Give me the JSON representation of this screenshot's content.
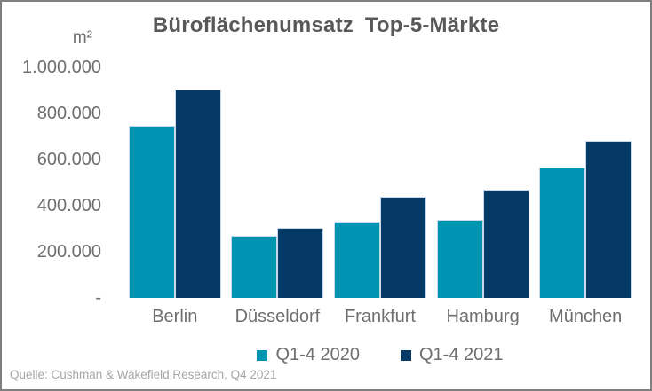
{
  "chart_data": {
    "type": "bar",
    "title": "Büroflächenumsatz Top-5-Märkte",
    "unit": "m²",
    "categories": [
      "Berlin",
      "Düsseldorf",
      "Frankfurt",
      "Hamburg",
      "München"
    ],
    "series": [
      {
        "name": "Q1-4 2020",
        "color": "#0094B3",
        "values": [
          745000,
          270000,
          330000,
          340000,
          565000
        ]
      },
      {
        "name": "Q1-4 2021",
        "color": "#063A66",
        "values": [
          905000,
          305000,
          440000,
          470000,
          680000
        ]
      }
    ],
    "ylim": [
      0,
      1000000
    ],
    "yticks": [
      {
        "label": "1.000.000",
        "value": 1000000
      },
      {
        "label": "800.000",
        "value": 800000
      },
      {
        "label": "600.000",
        "value": 600000
      },
      {
        "label": "400.000",
        "value": 400000
      },
      {
        "label": "200.000",
        "value": 200000
      },
      {
        "label": "-",
        "value": 0
      }
    ],
    "grid": false,
    "legend_position": "bottom"
  },
  "source": "Quelle: Cushman & Wakefield Research, Q4 2021",
  "colors": {
    "axis_text": "#6e6e6e",
    "title_text": "#595959",
    "source_text": "#a6a6a6",
    "frame_border": "#7f7f7f",
    "bar_border": "#c9d9ea"
  }
}
